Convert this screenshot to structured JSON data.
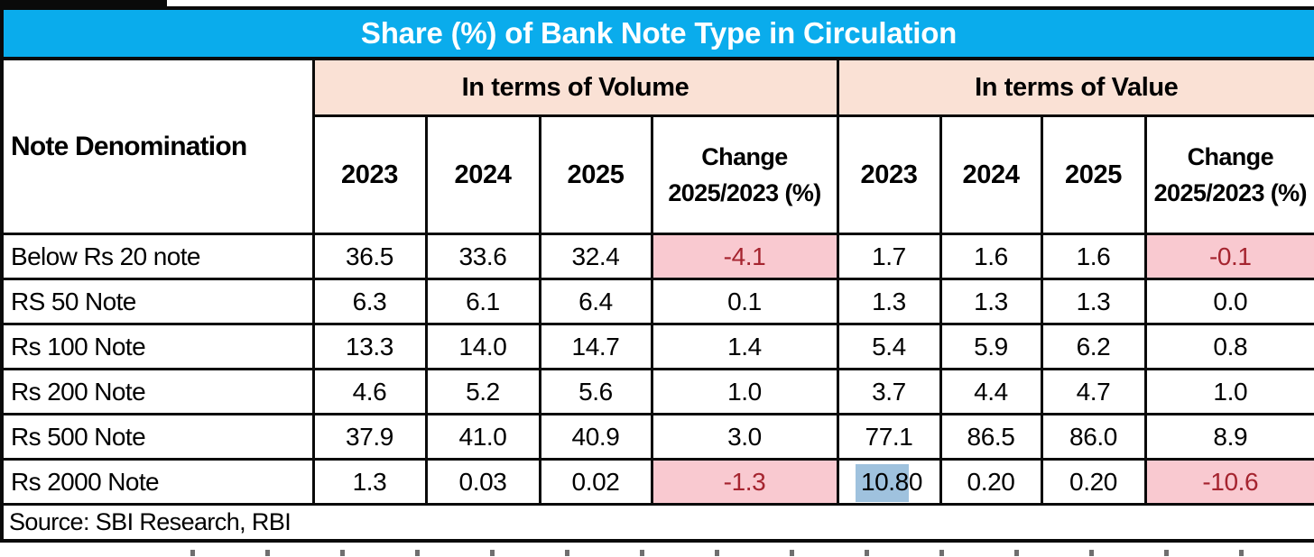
{
  "title": "Share (%) of Bank Note Type in Circulation",
  "table": {
    "corner_header": "Note Denomination",
    "group_headers": [
      "In terms of Volume",
      "In terms of Value"
    ],
    "col_headers": [
      "2023",
      "2024",
      "2025",
      "Change 2025/2023 (%)",
      "2023",
      "2024",
      "2025",
      "Change 2025/2023 (%)"
    ],
    "rows": [
      {
        "label": "Below Rs 20 note",
        "values": [
          "36.5",
          "33.6",
          "32.4",
          "-4.1",
          "1.7",
          "1.6",
          "1.6",
          "-0.1"
        ]
      },
      {
        "label": "RS 50 Note",
        "values": [
          "6.3",
          "6.1",
          "6.4",
          "0.1",
          "1.3",
          "1.3",
          "1.3",
          "0.0"
        ]
      },
      {
        "label": "Rs 100 Note",
        "values": [
          "13.3",
          "14.0",
          "14.7",
          "1.4",
          "5.4",
          "5.9",
          "6.2",
          "0.8"
        ]
      },
      {
        "label": "Rs 200 Note",
        "values": [
          "4.6",
          "5.2",
          "5.6",
          "1.0",
          "3.7",
          "4.4",
          "4.7",
          "1.0"
        ]
      },
      {
        "label": "Rs 500 Note",
        "values": [
          "37.9",
          "41.0",
          "40.9",
          "3.0",
          "77.1",
          "86.5",
          "86.0",
          "8.9"
        ]
      },
      {
        "label": "Rs 2000 Note",
        "values": [
          "1.3",
          "0.03",
          "0.02",
          "-1.3",
          "10.80",
          "0.20",
          "0.20",
          "-10.6"
        ]
      }
    ],
    "highlight": {
      "row_index": 5,
      "col_index": 4,
      "covered_text": "10.8"
    }
  },
  "source": "Source: SBI Research, RBI",
  "colors": {
    "title_bg": "#0aacec",
    "title_text": "#ffffff",
    "group_header_bg": "#fae1d5",
    "negative_bg": "#f9c9d0",
    "negative_text": "#a5242f",
    "highlight_bg": "#9fc2de",
    "border": "#0a0a0a"
  },
  "chart_data": {
    "type": "table",
    "title": "Share (%) of Bank Note Type in Circulation",
    "column_groups": [
      "In terms of Volume",
      "In terms of Value"
    ],
    "columns": [
      "Note Denomination",
      "Volume 2023",
      "Volume 2024",
      "Volume 2025",
      "Volume Change 2025/2023 (%)",
      "Value 2023",
      "Value 2024",
      "Value 2025",
      "Value Change 2025/2023 (%)"
    ],
    "rows": [
      [
        "Below Rs 20 note",
        36.5,
        33.6,
        32.4,
        -4.1,
        1.7,
        1.6,
        1.6,
        -0.1
      ],
      [
        "RS 50 Note",
        6.3,
        6.1,
        6.4,
        0.1,
        1.3,
        1.3,
        1.3,
        0.0
      ],
      [
        "Rs 100 Note",
        13.3,
        14.0,
        14.7,
        1.4,
        5.4,
        5.9,
        6.2,
        0.8
      ],
      [
        "Rs 200 Note",
        4.6,
        5.2,
        5.6,
        1.0,
        3.7,
        4.4,
        4.7,
        1.0
      ],
      [
        "Rs 500 Note",
        37.9,
        41.0,
        40.9,
        3.0,
        77.1,
        86.5,
        86.0,
        8.9
      ],
      [
        "Rs 2000 Note",
        1.3,
        0.03,
        0.02,
        -1.3,
        10.8,
        0.2,
        0.2,
        -10.6
      ]
    ],
    "annotations": [
      "Negative change cells shaded pink with dark-red text",
      "Value 2023 figure 10.80 for Rs 2000 Note has a blue highlight"
    ],
    "source": "Source: SBI Research, RBI"
  }
}
